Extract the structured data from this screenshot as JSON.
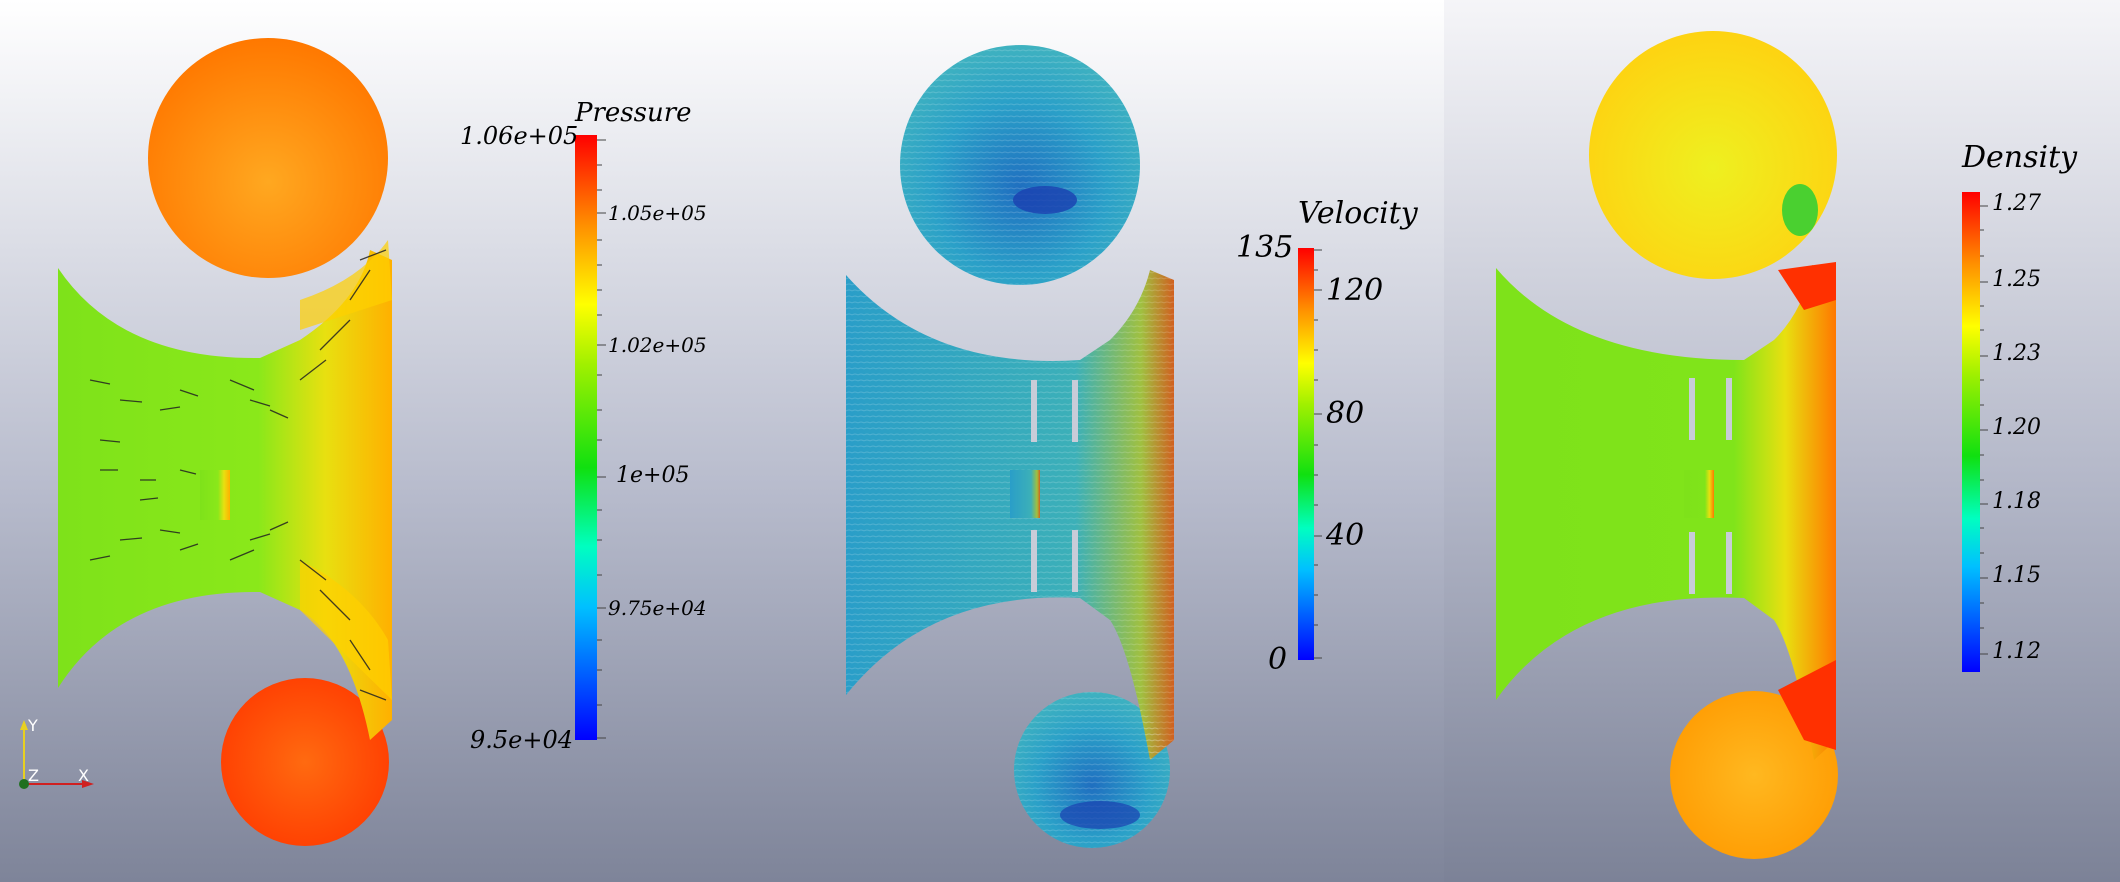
{
  "panels": {
    "pressure": {
      "title": "Pressure",
      "ticks": [
        "1.06e+05",
        "1.05e+05",
        "1.02e+05",
        "1e+05",
        "9.75e+04",
        "9.5e+04"
      ]
    },
    "velocity": {
      "title": "Velocity",
      "ticks": [
        "135",
        "120",
        "80",
        "40",
        "0"
      ]
    },
    "density": {
      "title": "Density",
      "ticks": [
        "1.27",
        "1.25",
        "1.23",
        "1.20",
        "1.18",
        "1.15",
        "1.12"
      ]
    }
  },
  "axes": {
    "y": "Y",
    "z": "Z",
    "x": "X"
  },
  "colors": {
    "y_axis": "#e8d020",
    "x_axis": "#d02020",
    "z_axis": "#207020"
  }
}
